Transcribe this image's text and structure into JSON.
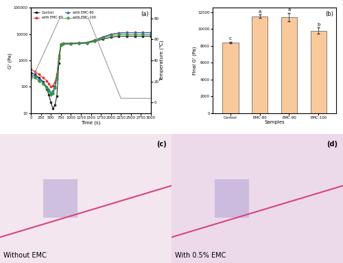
{
  "chart_data": [
    {
      "type": "line",
      "panel": "(a)",
      "x_label": "Time (s)",
      "y_label": "G' (Pa)",
      "y2_label": "Temperature (℃)",
      "log": "y",
      "legend": "upper left",
      "xlim": [
        0,
        3000
      ],
      "xticks": [
        0,
        250,
        500,
        750,
        1000,
        1250,
        1500,
        1750,
        2000,
        2250,
        2500,
        2750,
        3000
      ],
      "ylim": [
        10,
        100000
      ],
      "yticks": [
        10,
        100,
        1000,
        10000,
        100000
      ],
      "y2lim": [
        -10,
        90
      ],
      "y2ticks": [
        0,
        20,
        40,
        60,
        80
      ],
      "x": [
        0,
        100,
        200,
        300,
        400,
        450,
        500,
        550,
        600,
        650,
        700,
        750,
        800,
        1000,
        1200,
        1400,
        1600,
        1800,
        2000,
        2200,
        2400,
        2600,
        2800,
        3000
      ],
      "series": [
        {
          "name": "Control",
          "color": "#222222",
          "marker": "square",
          "values": [
            350,
            300,
            220,
            160,
            80,
            50,
            25,
            15,
            20,
            45,
            800,
            3800,
            4200,
            4300,
            4400,
            4600,
            5300,
            6500,
            7600,
            8300,
            8400,
            8400,
            8400,
            8400
          ]
        },
        {
          "name": "with EMC-80",
          "color": "#e8312f",
          "marker": "circle",
          "values": [
            450,
            380,
            300,
            220,
            170,
            130,
            100,
            110,
            150,
            300,
            1500,
            4300,
            4500,
            4600,
            4700,
            4900,
            6000,
            8000,
            10000,
            11200,
            11500,
            11500,
            11500,
            11500
          ]
        },
        {
          "name": "with EMC-90",
          "color": "#2f5fd0",
          "marker": "triangle",
          "values": [
            300,
            260,
            200,
            150,
            100,
            80,
            60,
            70,
            110,
            250,
            1300,
            4200,
            4400,
            4500,
            4600,
            4800,
            5900,
            7800,
            9800,
            11100,
            11400,
            11400,
            11400,
            11400
          ]
        },
        {
          "name": "with EMC-100",
          "color": "#2ca02c",
          "marker": "diamond",
          "values": [
            250,
            220,
            170,
            130,
            90,
            70,
            50,
            55,
            90,
            200,
            1200,
            4000,
            4200,
            4300,
            4400,
            4600,
            5500,
            7200,
            8800,
            9600,
            9800,
            9800,
            9800,
            9800
          ]
        },
        {
          "axis": "y2",
          "color": "#9a9a9a",
          "line_style": "solid",
          "x": [
            0,
            720,
            1440,
            2250,
            3000
          ],
          "values": [
            20,
            80,
            80,
            4,
            4
          ]
        }
      ]
    },
    {
      "type": "bar",
      "panel": "(b)",
      "x_label": "Samples",
      "y_label": "Final G' (Pa)",
      "categories": [
        "Control",
        "EMC-80",
        "EMC-90",
        "EMC-100"
      ],
      "values": [
        8400,
        11500,
        11400,
        9800
      ],
      "errors": [
        100,
        200,
        500,
        350
      ],
      "significance_letters": [
        "c",
        "a",
        "a",
        "b"
      ],
      "color": "#f9c89b",
      "ylim": [
        0,
        12500
      ],
      "yticks": [
        0,
        2000,
        4000,
        6000,
        8000,
        10000,
        12000
      ]
    }
  ],
  "images": [
    {
      "panel": "(c)",
      "caption": "Without EMC"
    },
    {
      "panel": "(d)",
      "caption": "With 0.5% EMC"
    }
  ]
}
